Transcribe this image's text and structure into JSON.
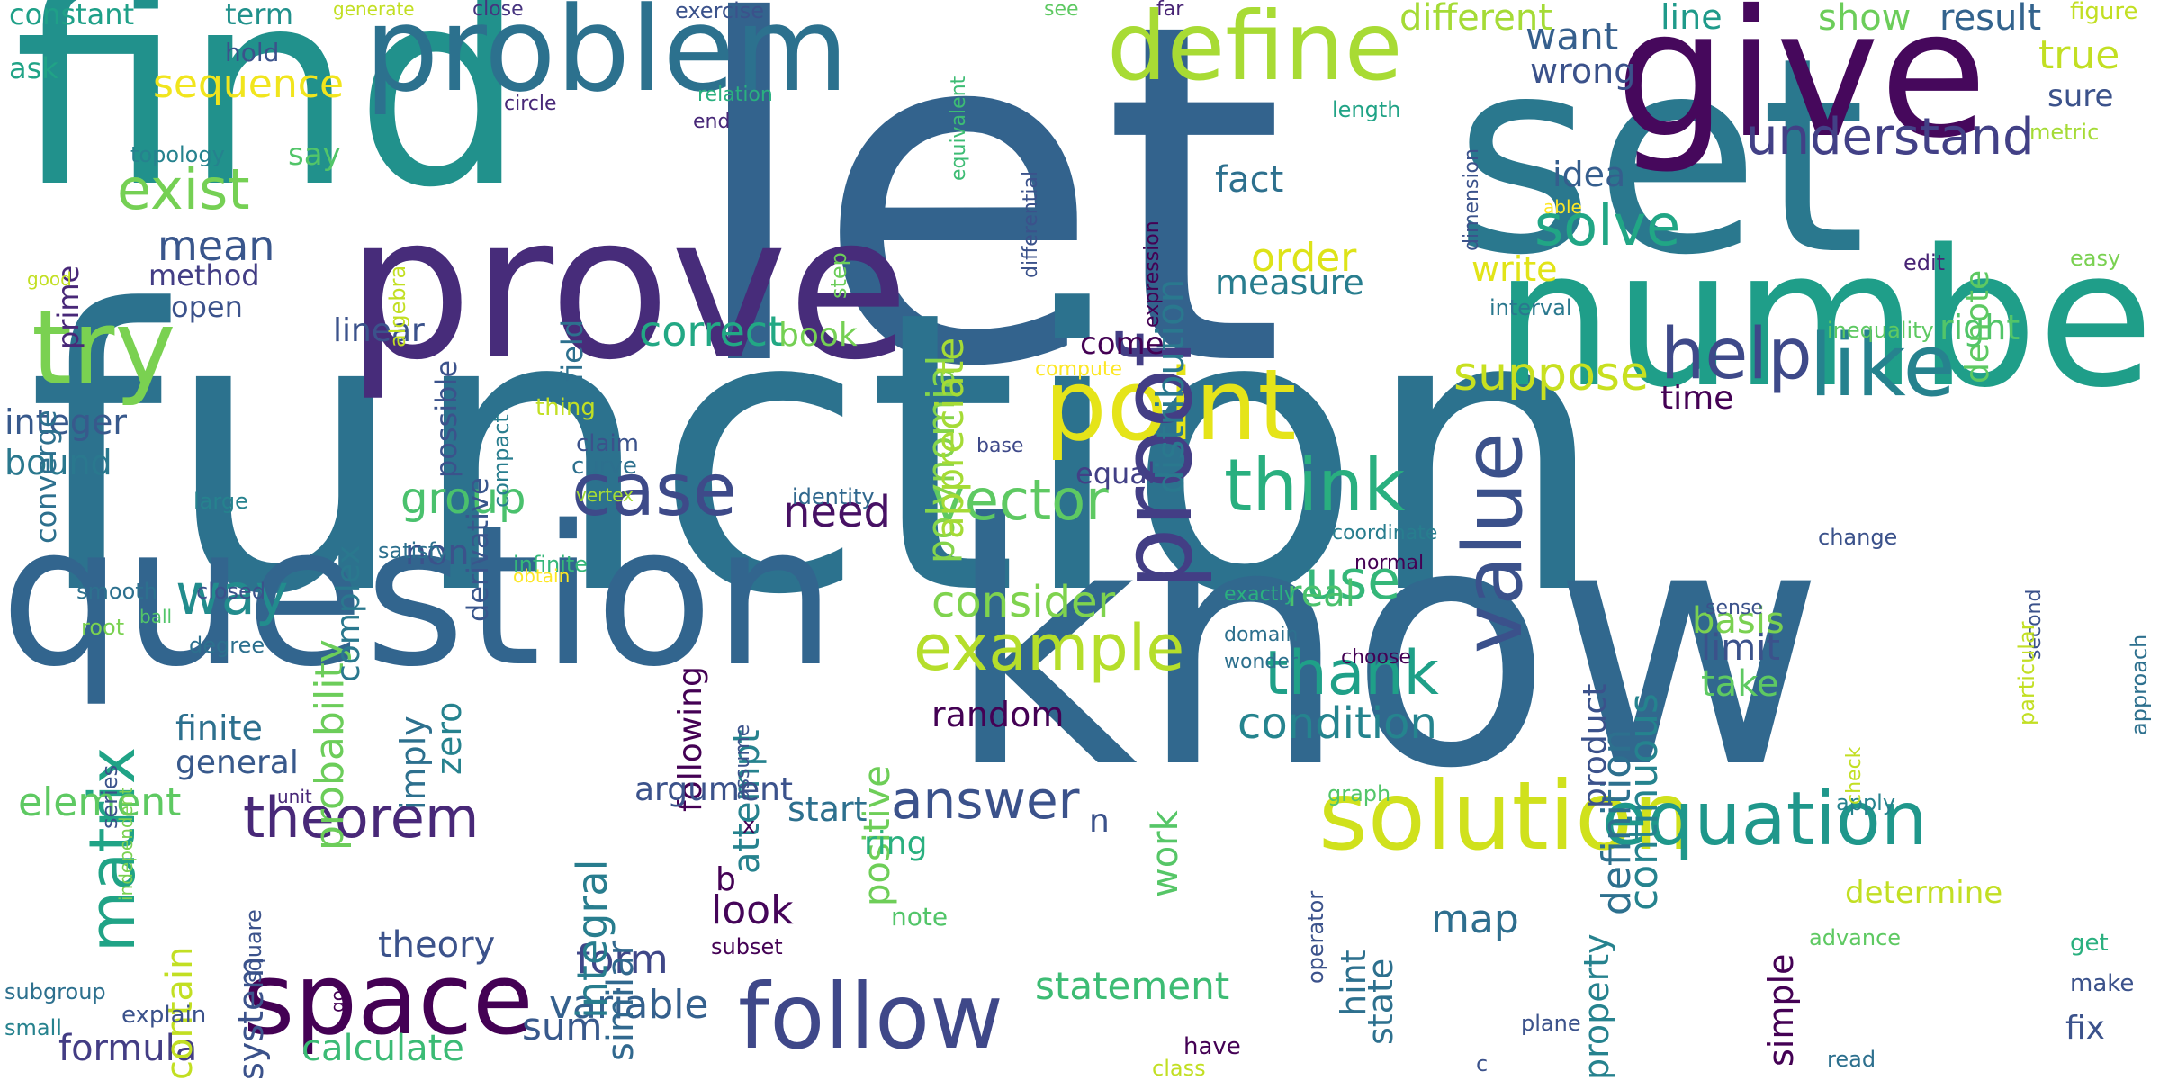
{
  "words": [
    {
      "text": "let",
      "color": "#33638d"
    },
    {
      "text": "function",
      "color": "#2c728e"
    },
    {
      "text": "know",
      "color": "#31688e"
    },
    {
      "text": "question",
      "color": "#32658e"
    },
    {
      "text": "find",
      "color": "#21918c"
    },
    {
      "text": "set",
      "color": "#2a788e"
    },
    {
      "text": "prove",
      "color": "#472c7a"
    },
    {
      "text": "give",
      "color": "#46085c"
    },
    {
      "text": "number",
      "color": "#1f9e89"
    },
    {
      "text": "problem",
      "color": "#2c718e"
    },
    {
      "text": "solution",
      "color": "#d0e11c"
    },
    {
      "text": "point",
      "color": "#e5e419"
    },
    {
      "text": "follow",
      "color": "#3f4889"
    },
    {
      "text": "define",
      "color": "#a8db34"
    },
    {
      "text": "space",
      "color": "#440154"
    },
    {
      "text": "try",
      "color": "#7ad151"
    },
    {
      "text": "proof",
      "color": "#433e85"
    },
    {
      "text": "value",
      "color": "#3b518b"
    },
    {
      "text": "equation",
      "color": "#1f978b"
    },
    {
      "text": "like",
      "color": "#26828e"
    },
    {
      "text": "case",
      "color": "#3e4a89"
    },
    {
      "text": "help",
      "color": "#3e4989"
    },
    {
      "text": "think",
      "color": "#29af7f"
    },
    {
      "text": "answer",
      "color": "#3b528b"
    },
    {
      "text": "matrix",
      "color": "#20a386"
    },
    {
      "text": "theorem",
      "color": "#482878"
    },
    {
      "text": "example",
      "color": "#b5de2b"
    },
    {
      "text": "vector",
      "color": "#5ec962"
    },
    {
      "text": "way",
      "color": "#228c8d"
    },
    {
      "text": "thank",
      "color": "#1fa088"
    },
    {
      "text": "exist",
      "color": "#75d054"
    },
    {
      "text": "use",
      "color": "#35b779"
    },
    {
      "text": "solve",
      "color": "#21a685"
    },
    {
      "text": "understand",
      "color": "#424086"
    },
    {
      "text": "consider",
      "color": "#7fd34e"
    },
    {
      "text": "condition",
      "color": "#25848e"
    },
    {
      "text": "mean",
      "color": "#39568c"
    },
    {
      "text": "group",
      "color": "#4ac16d"
    },
    {
      "text": "suppose",
      "color": "#c8e020"
    },
    {
      "text": "correct",
      "color": "#22a884"
    },
    {
      "text": "element",
      "color": "#5ec962"
    },
    {
      "text": "order",
      "color": "#dde318"
    },
    {
      "text": "need",
      "color": "#471164"
    },
    {
      "text": "sequence",
      "color": "#f1e51d"
    },
    {
      "text": "statement",
      "color": "#3dbc74"
    },
    {
      "text": "calculate",
      "color": "#3bbb75"
    },
    {
      "text": "formula",
      "color": "#433d84"
    },
    {
      "text": "variable",
      "color": "#34608d"
    },
    {
      "text": "look",
      "color": "#450559"
    },
    {
      "text": "work",
      "color": "#56c667"
    },
    {
      "text": "map",
      "color": "#2e6e8e"
    },
    {
      "text": "form",
      "color": "#3f4788"
    },
    {
      "text": "sum",
      "color": "#38598c"
    },
    {
      "text": "integral",
      "color": "#287d8e"
    },
    {
      "text": "probability",
      "color": "#6ccd5a"
    },
    {
      "text": "continuous",
      "color": "#25838e"
    },
    {
      "text": "definition",
      "color": "#2d708e"
    },
    {
      "text": "distribution",
      "color": "#2a788e"
    },
    {
      "text": "polynomial",
      "color": "#84d44b"
    },
    {
      "text": "appreciate",
      "color": "#a5db36"
    },
    {
      "text": "positive",
      "color": "#6ece58"
    },
    {
      "text": "random",
      "color": "#440154"
    },
    {
      "text": "limit",
      "color": "#3b528b"
    },
    {
      "text": "take",
      "color": "#5ec962"
    },
    {
      "text": "basis",
      "color": "#7ad151"
    },
    {
      "text": "real",
      "color": "#4ac16d"
    },
    {
      "text": "fact",
      "color": "#2d708e"
    },
    {
      "text": "measure",
      "color": "#287d8e"
    },
    {
      "text": "write",
      "color": "#e2e418"
    },
    {
      "text": "want",
      "color": "#355f8d"
    },
    {
      "text": "wrong",
      "color": "#3b528b"
    },
    {
      "text": "idea",
      "color": "#355e8d"
    },
    {
      "text": "time",
      "color": "#440154"
    },
    {
      "text": "right",
      "color": "#52c569"
    },
    {
      "text": "true",
      "color": "#c2df23"
    },
    {
      "text": "sure",
      "color": "#3b528b"
    },
    {
      "text": "result",
      "color": "#33638d"
    },
    {
      "text": "different",
      "color": "#a5db36"
    },
    {
      "text": "line",
      "color": "#1f9a8a"
    },
    {
      "text": "show",
      "color": "#6ccd5a"
    },
    {
      "text": "figure",
      "color": "#c2df23"
    },
    {
      "text": "metric",
      "color": "#a5db36"
    },
    {
      "text": "denote",
      "color": "#5ec962"
    },
    {
      "text": "easy",
      "color": "#7ad151"
    },
    {
      "text": "edit",
      "color": "#482475"
    },
    {
      "text": "book",
      "color": "#75d054"
    },
    {
      "text": "come",
      "color": "#440154"
    },
    {
      "text": "equal",
      "color": "#424086"
    },
    {
      "text": "non",
      "color": "#3b528b"
    },
    {
      "text": "imply",
      "color": "#2d708e"
    },
    {
      "text": "zero",
      "color": "#26828e"
    },
    {
      "text": "finite",
      "color": "#2d708e"
    },
    {
      "text": "general",
      "color": "#38598c"
    },
    {
      "text": "integer",
      "color": "#38598c"
    },
    {
      "text": "bound",
      "color": "#2a788e"
    },
    {
      "text": "linear",
      "color": "#3b528b"
    },
    {
      "text": "complex",
      "color": "#2a788e"
    },
    {
      "text": "open",
      "color": "#3b528b"
    },
    {
      "text": "method",
      "color": "#433e85"
    },
    {
      "text": "converge",
      "color": "#2d708e"
    },
    {
      "text": "prime",
      "color": "#482878"
    },
    {
      "text": "say",
      "color": "#52c569"
    },
    {
      "text": "possible",
      "color": "#3b528b"
    },
    {
      "text": "derivative",
      "color": "#39568c"
    },
    {
      "text": "field",
      "color": "#2d708e"
    },
    {
      "text": "ask",
      "color": "#20a386"
    },
    {
      "text": "constant",
      "color": "#1fa088"
    },
    {
      "text": "term",
      "color": "#21918c"
    },
    {
      "text": "hold",
      "color": "#3b528b"
    },
    {
      "text": "topology",
      "color": "#26828e"
    },
    {
      "text": "circle",
      "color": "#482878"
    },
    {
      "text": "close",
      "color": "#46337f"
    },
    {
      "text": "generate",
      "color": "#c2df23"
    },
    {
      "text": "exercise",
      "color": "#3b528b"
    },
    {
      "text": "see",
      "color": "#5ec962"
    },
    {
      "text": "far",
      "color": "#482475"
    },
    {
      "text": "relation",
      "color": "#2ab07f"
    },
    {
      "text": "end",
      "color": "#482878"
    },
    {
      "text": "equivalent",
      "color": "#3dbc74"
    },
    {
      "text": "differential",
      "color": "#3b528b"
    },
    {
      "text": "expression",
      "color": "#440154"
    },
    {
      "text": "dimension",
      "color": "#3b528b"
    },
    {
      "text": "interval",
      "color": "#2a788e"
    },
    {
      "text": "able",
      "color": "#fde725"
    },
    {
      "text": "length",
      "color": "#20a386"
    },
    {
      "text": "inequality",
      "color": "#5ec962"
    },
    {
      "text": "compute",
      "color": "#fde725"
    },
    {
      "text": "thing",
      "color": "#c2df23"
    },
    {
      "text": "claim",
      "color": "#3b528b"
    },
    {
      "text": "curve",
      "color": "#2d708e"
    },
    {
      "text": "vertex",
      "color": "#a5db36"
    },
    {
      "text": "compact",
      "color": "#287d8e"
    },
    {
      "text": "base",
      "color": "#3e4989"
    },
    {
      "text": "identity",
      "color": "#31688e"
    },
    {
      "text": "large",
      "color": "#26828e"
    },
    {
      "text": "satisfy",
      "color": "#2d708e"
    },
    {
      "text": "infinite",
      "color": "#35b779"
    },
    {
      "text": "obtain",
      "color": "#fde725"
    },
    {
      "text": "smooth",
      "color": "#2d708e"
    },
    {
      "text": "root",
      "color": "#7ad151"
    },
    {
      "text": "ball",
      "color": "#52c569"
    },
    {
      "text": "closed",
      "color": "#3b528b"
    },
    {
      "text": "degree",
      "color": "#2d708e"
    },
    {
      "text": "series",
      "color": "#3b528b"
    },
    {
      "text": "independent",
      "color": "#7ad151"
    },
    {
      "text": "unit",
      "color": "#482878"
    },
    {
      "text": "algebra",
      "color": "#c2df23"
    },
    {
      "text": "good",
      "color": "#c2df23"
    },
    {
      "text": "step",
      "color": "#6ccd5a"
    },
    {
      "text": "coordinate",
      "color": "#287d8e"
    },
    {
      "text": "normal",
      "color": "#440154"
    },
    {
      "text": "exactly",
      "color": "#2ab07f"
    },
    {
      "text": "domain",
      "color": "#2d708e"
    },
    {
      "text": "wonder",
      "color": "#2d708e"
    },
    {
      "text": "choose",
      "color": "#440154"
    },
    {
      "text": "change",
      "color": "#3b528b"
    },
    {
      "text": "sense",
      "color": "#3b528b"
    },
    {
      "text": "second",
      "color": "#3b528b"
    },
    {
      "text": "particular",
      "color": "#c2df23"
    },
    {
      "text": "approach",
      "color": "#2d708e"
    },
    {
      "text": "product",
      "color": "#3b528b"
    },
    {
      "text": "following",
      "color": "#440154"
    },
    {
      "text": "attempt",
      "color": "#26828e"
    },
    {
      "text": "assume",
      "color": "#3b528b"
    },
    {
      "text": "argument",
      "color": "#3b528b"
    },
    {
      "text": "start",
      "color": "#2d708e"
    },
    {
      "text": "x",
      "color": "#440154"
    },
    {
      "text": "ring",
      "color": "#2ab07f"
    },
    {
      "text": "note",
      "color": "#52c569"
    },
    {
      "text": "b",
      "color": "#440154"
    },
    {
      "text": "subset",
      "color": "#440154"
    },
    {
      "text": "similar",
      "color": "#31688e"
    },
    {
      "text": "theory",
      "color": "#3b528b"
    },
    {
      "text": "contain",
      "color": "#c2df23"
    },
    {
      "text": "square",
      "color": "#3b528b"
    },
    {
      "text": "go",
      "color": "#440154"
    },
    {
      "text": "subgroup",
      "color": "#2d708e"
    },
    {
      "text": "small",
      "color": "#26828e"
    },
    {
      "text": "explain",
      "color": "#3b528b"
    },
    {
      "text": "system",
      "color": "#3b528b"
    },
    {
      "text": "n",
      "color": "#3b528b"
    },
    {
      "text": "graph",
      "color": "#52c569"
    },
    {
      "text": "operator",
      "color": "#3b528b"
    },
    {
      "text": "hint",
      "color": "#2d708e"
    },
    {
      "text": "state",
      "color": "#2d708e"
    },
    {
      "text": "property",
      "color": "#26828e"
    },
    {
      "text": "simple",
      "color": "#440154"
    },
    {
      "text": "apply",
      "color": "#26828e"
    },
    {
      "text": "advance",
      "color": "#5ec962"
    },
    {
      "text": "determine",
      "color": "#c2df23"
    },
    {
      "text": "get",
      "color": "#2ab07f"
    },
    {
      "text": "make",
      "color": "#3b528b"
    },
    {
      "text": "fix",
      "color": "#3b528b"
    },
    {
      "text": "read",
      "color": "#2d708e"
    },
    {
      "text": "plane",
      "color": "#3b528b"
    },
    {
      "text": "c",
      "color": "#3b528b"
    },
    {
      "text": "have",
      "color": "#440154"
    },
    {
      "text": "class",
      "color": "#c2df23"
    },
    {
      "text": "check",
      "color": "#c2df23"
    },
    {
      "text": "y",
      "color": "#3b528b"
    }
  ]
}
